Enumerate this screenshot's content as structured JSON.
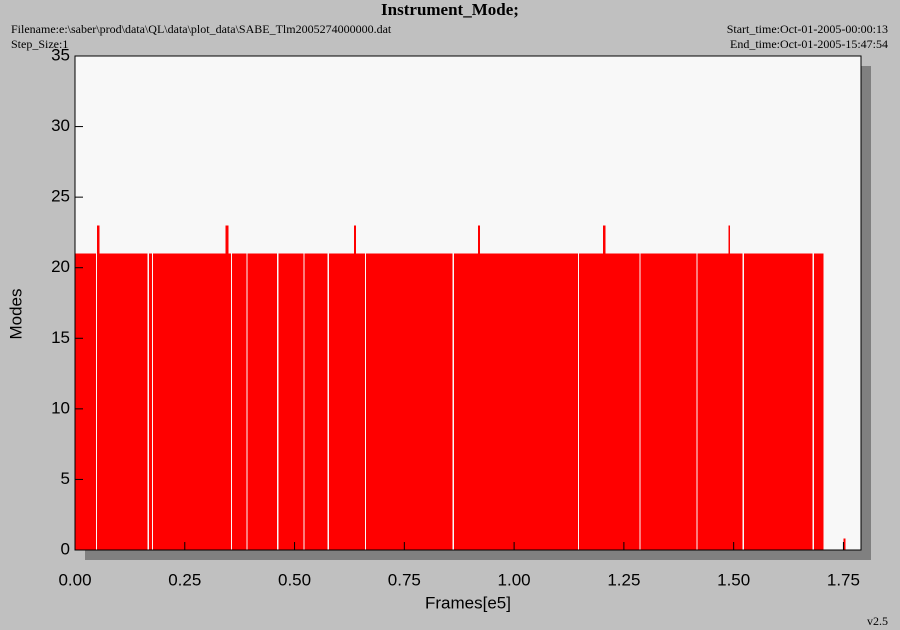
{
  "chart_data": {
    "type": "step",
    "title": "Instrument_Mode;",
    "filename": "Filename:e:\\saber\\prod\\data\\QL\\data\\plot_data\\SABE_Tlm2005274000000.dat",
    "step_size": "Step_Size:1",
    "start_time": "Start_time:Oct-01-2005-00:00:13",
    "end_time": "End_time:Oct-01-2005-15:47:54",
    "version": "v2.5",
    "x_label": "Frames[e5]",
    "y_label": "Modes",
    "xlim": [
      0,
      1.79
    ],
    "ylim": [
      0,
      35
    ],
    "xticks": [
      {
        "value": 0,
        "label": "0.00"
      },
      0.25,
      {
        "value": 0.5,
        "label": "0.50"
      },
      0.75,
      {
        "value": 1,
        "label": "1.00"
      },
      1.25,
      {
        "value": 1.5,
        "label": "1.50"
      },
      1.75
    ],
    "yticks": [
      0,
      5,
      10,
      15,
      20,
      25,
      30,
      35
    ],
    "series": [
      {
        "name": "Modes",
        "color": "#ff0000",
        "x": [
          0,
          0.048,
          0.05,
          0.056,
          0.165,
          0.168,
          0.175,
          0.178,
          0.343,
          0.35,
          0.355,
          0.358,
          0.39,
          0.393,
          0.46,
          0.463,
          0.52,
          0.523,
          0.575,
          0.578,
          0.635,
          0.64,
          0.66,
          0.663,
          0.86,
          0.863,
          0.918,
          0.922,
          1.145,
          1.148,
          1.203,
          1.208,
          1.285,
          1.288,
          1.415,
          1.418,
          1.488,
          1.492,
          1.52,
          1.523,
          1.68,
          1.683,
          1.705,
          1.75
        ],
        "values": [
          21,
          0,
          23,
          21,
          0,
          21,
          0,
          21,
          23,
          21,
          0,
          21,
          0,
          21,
          0,
          21,
          0,
          21,
          0,
          21,
          23,
          21,
          0,
          21,
          0,
          21,
          23,
          21,
          0,
          21,
          23,
          21,
          0,
          21,
          0,
          21,
          23,
          21,
          0,
          21,
          0,
          21,
          0,
          0.8
        ]
      }
    ]
  }
}
